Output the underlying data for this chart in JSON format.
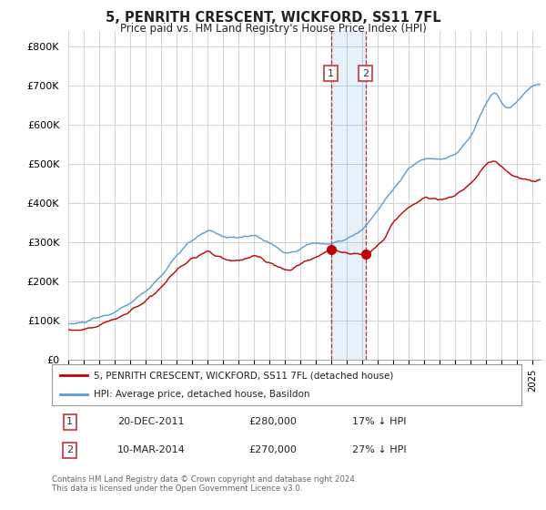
{
  "title": "5, PENRITH CRESCENT, WICKFORD, SS11 7FL",
  "subtitle": "Price paid vs. HM Land Registry's House Price Index (HPI)",
  "ylabel_ticks": [
    "£0",
    "£100K",
    "£200K",
    "£300K",
    "£400K",
    "£500K",
    "£600K",
    "£700K",
    "£800K"
  ],
  "ytick_values": [
    0,
    100000,
    200000,
    300000,
    400000,
    500000,
    600000,
    700000,
    800000
  ],
  "ylim": [
    0,
    840000
  ],
  "xlim_start": 1995.0,
  "xlim_end": 2025.5,
  "hpi_color": "#5b9bd5",
  "price_color": "#c00000",
  "transaction1_date": 2011.97,
  "transaction2_date": 2014.19,
  "transaction1_price": 280000,
  "transaction2_price": 270000,
  "legend_label1": "5, PENRITH CRESCENT, WICKFORD, SS11 7FL (detached house)",
  "legend_label2": "HPI: Average price, detached house, Basildon",
  "footer": "Contains HM Land Registry data © Crown copyright and database right 2024.\nThis data is licensed under the Open Government Licence v3.0.",
  "background_color": "#ffffff",
  "grid_color": "#cccccc",
  "note1_box": "1",
  "note1_date": "20-DEC-2011",
  "note1_price": "£280,000",
  "note1_hpi": "17% ↓ HPI",
  "note2_box": "2",
  "note2_date": "10-MAR-2014",
  "note2_price": "£270,000",
  "note2_hpi": "27% ↓ HPI"
}
